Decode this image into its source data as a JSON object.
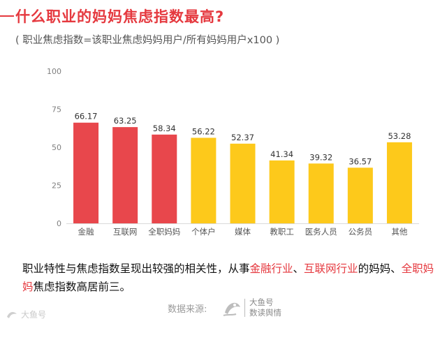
{
  "header": {
    "title": "什么职业的妈妈焦虑指数最高?",
    "subtitle": "( 职业焦虑指数=该职业焦虑妈妈用户/所有妈妈用户x100 )"
  },
  "chart_data": {
    "type": "bar",
    "categories": [
      "金融",
      "互联网",
      "全职妈妈",
      "个体户",
      "媒体",
      "教职工",
      "医务人员",
      "公务员",
      "其他"
    ],
    "values": [
      66.17,
      63.25,
      58.34,
      56.22,
      52.37,
      41.34,
      39.32,
      36.57,
      53.28
    ],
    "value_labels": [
      "66.17",
      "63.25",
      "58.34",
      "56.22",
      "52.37",
      "41.34",
      "39.32",
      "36.57",
      "53.28"
    ],
    "highlight": [
      true,
      true,
      true,
      false,
      false,
      false,
      false,
      false,
      false
    ],
    "ylim": [
      0,
      100
    ],
    "yticks": [
      0,
      25,
      50,
      75,
      100
    ],
    "title": "",
    "xlabel": "",
    "ylabel": "",
    "grid": false,
    "colors": {
      "highlight": "#e8474c",
      "normal": "#fdc91b",
      "axis": "#d9d9d9",
      "tick": "#808080"
    }
  },
  "description": {
    "part1": "职业特性与焦虑指数呈现出较强的相关性，从事",
    "highlight1": "金融行业",
    "sep1": "、",
    "highlight2": "互联网行业",
    "part2": "的妈妈、",
    "highlight3": "全职妈妈",
    "part3": "焦虑指数高居前三。"
  },
  "footer": {
    "source_label": "数据来源:",
    "logo_line1": "大鱼号",
    "logo_line2": "数读舆情",
    "watermark": "大鱼号"
  }
}
